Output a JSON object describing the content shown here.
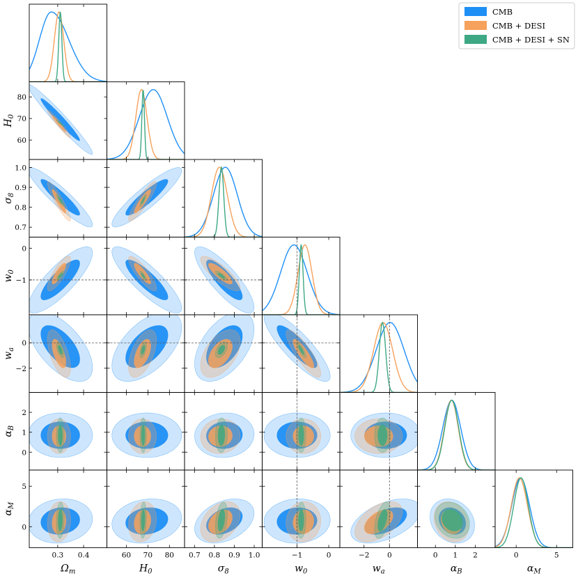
{
  "chart_data": {
    "type": "corner",
    "title": "",
    "colors": {
      "CMB": "#1e8ff5",
      "CMB + DESI": "#f6a15c",
      "CMB + DESI + SN": "#3da883"
    },
    "legend": {
      "placement": "top-right",
      "entries": [
        "CMB",
        "CMB + DESI",
        "CMB + DESI + SN"
      ]
    },
    "parameters": [
      {
        "id": "Om",
        "label": "Ω",
        "sub": "m",
        "range": [
          0.19,
          0.49
        ],
        "ticks": [
          0.3,
          0.4
        ],
        "tick_labels": [
          "0.3",
          "0.4"
        ]
      },
      {
        "id": "H0",
        "label": "H",
        "sub": "0",
        "range": [
          51,
          87
        ],
        "ticks": [
          60,
          70,
          80
        ],
        "tick_labels": [
          "60",
          "70",
          "80"
        ]
      },
      {
        "id": "s8",
        "label": "σ",
        "sub": "8",
        "range": [
          0.65,
          1.04
        ],
        "ticks": [
          0.7,
          0.8,
          0.9,
          1.0
        ],
        "tick_labels": [
          "0.7",
          "0.8",
          "0.9",
          "1.0"
        ]
      },
      {
        "id": "w0",
        "label": "w",
        "sub": "0",
        "range": [
          -2.1,
          0.35
        ],
        "ticks": [
          -1,
          0
        ],
        "tick_labels": [
          "−1",
          "0"
        ]
      },
      {
        "id": "wa",
        "label": "w",
        "sub": "a",
        "range": [
          -3.9,
          2.2
        ],
        "ticks": [
          -2,
          0
        ],
        "tick_labels": [
          "−2",
          "0"
        ]
      },
      {
        "id": "aB",
        "label": "α",
        "sub": "B",
        "range": [
          -0.9,
          3.0
        ],
        "ticks": [
          0,
          1,
          2
        ],
        "tick_labels": [
          "0",
          "1",
          "2"
        ]
      },
      {
        "id": "aM",
        "label": "α",
        "sub": "M",
        "range": [
          -2.6,
          7.0
        ],
        "ticks": [
          0,
          5
        ],
        "tick_labels": [
          "0",
          "5"
        ]
      }
    ],
    "left_axis_ticks": {
      "H0": {
        "ticks": [
          60,
          70,
          80
        ],
        "tick_labels": [
          "60",
          "70",
          "80"
        ]
      },
      "s8": {
        "ticks": [
          0.7,
          0.8,
          0.9,
          1.0
        ],
        "tick_labels": [
          "0.7",
          "0.8",
          "0.9",
          "1.0"
        ]
      },
      "w0": {
        "ticks": [
          -1,
          0
        ],
        "tick_labels": [
          "−1",
          "0"
        ]
      },
      "wa": {
        "ticks": [
          -2,
          0
        ],
        "tick_labels": [
          "−2",
          "0"
        ]
      },
      "aB": {
        "ticks": [
          0,
          1,
          2
        ],
        "tick_labels": [
          "0",
          "1",
          "2"
        ]
      },
      "aM": {
        "ticks": [
          0,
          5
        ],
        "tick_labels": [
          "0",
          "5"
        ]
      }
    },
    "reference_lines": {
      "w0": -1,
      "wa": 0
    },
    "series": [
      {
        "name": "CMB",
        "mean": {
          "Om": 0.31,
          "H0": 69.5,
          "s8": 0.85,
          "w0": -1.0,
          "wa": -0.3,
          "aB": 0.85,
          "aM": 0.7
        },
        "sigma": {
          "Om": 0.05,
          "H0": 6.5,
          "s8": 0.06,
          "w0": 0.42,
          "wa": 1.1,
          "aB": 0.45,
          "aM": 1.1
        },
        "marginal_peak": {
          "Om": 0.275,
          "H0": 72.5,
          "s8": 0.855,
          "w0": -1.1,
          "wa": 0.05,
          "aB": 0.82,
          "aM": 0.55
        }
      },
      {
        "name": "CMB + DESI",
        "mean": {
          "Om": 0.305,
          "H0": 67.5,
          "s8": 0.83,
          "w0": -0.8,
          "wa": -0.85,
          "aB": 0.8,
          "aM": 0.6
        },
        "sigma": {
          "Om": 0.018,
          "H0": 2.6,
          "s8": 0.04,
          "w0": 0.22,
          "wa": 0.75,
          "aB": 0.35,
          "aM": 1.0
        },
        "marginal_peak": {
          "Om": 0.305,
          "H0": 67.0,
          "s8": 0.825,
          "w0": -0.75,
          "wa": -0.5,
          "aB": 0.8,
          "aM": 0.4
        }
      },
      {
        "name": "CMB + DESI + SN",
        "mean": {
          "Om": 0.31,
          "H0": 67.8,
          "s8": 0.835,
          "w0": -0.87,
          "wa": -0.55,
          "aB": 0.85,
          "aM": 0.8
        },
        "sigma": {
          "Om": 0.006,
          "H0": 0.6,
          "s8": 0.012,
          "w0": 0.06,
          "wa": 0.25,
          "aB": 0.35,
          "aM": 0.9
        },
        "marginal_peak": {
          "Om": 0.31,
          "H0": 67.8,
          "s8": 0.835,
          "w0": -0.87,
          "wa": -0.55,
          "aB": 0.82,
          "aM": 0.6
        }
      }
    ],
    "correlations": {
      "H0|Om": -0.97,
      "s8|Om": -0.92,
      "s8|H0": 0.9,
      "w0|Om": 0.82,
      "w0|H0": -0.85,
      "w0|s8": -0.83,
      "wa|Om": -0.6,
      "wa|H0": 0.55,
      "wa|s8": 0.5,
      "wa|w0": -0.85,
      "aB|Om": 0.0,
      "aB|H0": 0.0,
      "aB|s8": 0.05,
      "aB|w0": 0.0,
      "aB|wa": 0.0,
      "aM|Om": 0.1,
      "aM|H0": 0.15,
      "aM|s8": 0.35,
      "aM|w0": 0.05,
      "aM|wa": 0.5,
      "aM|aB": -0.2
    }
  }
}
